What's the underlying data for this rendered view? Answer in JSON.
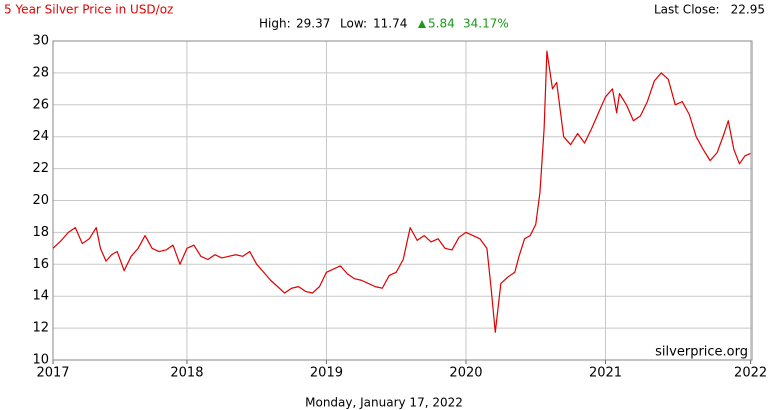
{
  "chart_data": {
    "type": "line",
    "title": "5 Year Silver Price in USD/oz",
    "last_close": {
      "label": "Last Close:",
      "value": 22.95
    },
    "high": {
      "label": "High:",
      "value": 29.37
    },
    "low": {
      "label": "Low:",
      "value": 11.74
    },
    "change": 5.84,
    "change_percent": "34.17%",
    "source": "silverprice.org",
    "date": "Monday, January 17, 2022",
    "xlim": [
      2017.04,
      2022.05
    ],
    "xticks": [
      {
        "value": 2017.04,
        "label": "2017"
      },
      2018,
      2019,
      2020,
      2021,
      {
        "value": 2022.04,
        "label": "2022"
      }
    ],
    "ylim": [
      10,
      30
    ],
    "yticks": [
      10,
      12,
      14,
      16,
      18,
      20,
      22,
      24,
      26,
      28,
      30
    ],
    "grid": true,
    "series": [
      {
        "name": "Silver",
        "color": "#e00000",
        "x": [
          2017.04,
          2017.1,
          2017.15,
          2017.2,
          2017.25,
          2017.3,
          2017.35,
          2017.38,
          2017.42,
          2017.46,
          2017.5,
          2017.55,
          2017.6,
          2017.65,
          2017.7,
          2017.75,
          2017.8,
          2017.85,
          2017.9,
          2017.95,
          2018.0,
          2018.05,
          2018.1,
          2018.15,
          2018.2,
          2018.25,
          2018.3,
          2018.35,
          2018.4,
          2018.45,
          2018.5,
          2018.55,
          2018.6,
          2018.65,
          2018.7,
          2018.75,
          2018.8,
          2018.85,
          2018.9,
          2018.95,
          2019.0,
          2019.05,
          2019.1,
          2019.15,
          2019.2,
          2019.25,
          2019.3,
          2019.35,
          2019.4,
          2019.45,
          2019.5,
          2019.55,
          2019.6,
          2019.65,
          2019.7,
          2019.75,
          2019.8,
          2019.85,
          2019.9,
          2019.95,
          2020.0,
          2020.05,
          2020.1,
          2020.15,
          2020.18,
          2020.21,
          2020.25,
          2020.3,
          2020.35,
          2020.38,
          2020.42,
          2020.46,
          2020.5,
          2020.53,
          2020.56,
          2020.58,
          2020.62,
          2020.65,
          2020.7,
          2020.75,
          2020.8,
          2020.85,
          2020.9,
          2020.95,
          2021.0,
          2021.05,
          2021.08,
          2021.1,
          2021.15,
          2021.2,
          2021.25,
          2021.3,
          2021.35,
          2021.4,
          2021.45,
          2021.5,
          2021.55,
          2021.6,
          2021.65,
          2021.7,
          2021.75,
          2021.8,
          2021.85,
          2021.88,
          2021.92,
          2021.96,
          2022.0,
          2022.04
        ],
        "values": [
          17.0,
          17.5,
          18.0,
          18.3,
          17.3,
          17.6,
          18.3,
          17.0,
          16.2,
          16.6,
          16.8,
          15.6,
          16.5,
          17.0,
          17.8,
          17.0,
          16.8,
          16.9,
          17.2,
          16.0,
          17.0,
          17.2,
          16.5,
          16.3,
          16.6,
          16.4,
          16.5,
          16.6,
          16.5,
          16.8,
          16.0,
          15.5,
          15.0,
          14.6,
          14.2,
          14.5,
          14.6,
          14.3,
          14.2,
          14.6,
          15.5,
          15.7,
          15.9,
          15.4,
          15.1,
          15.0,
          14.8,
          14.6,
          14.5,
          15.3,
          15.5,
          16.3,
          18.3,
          17.5,
          17.8,
          17.4,
          17.6,
          17.0,
          16.9,
          17.7,
          18.0,
          17.8,
          17.6,
          17.0,
          14.5,
          11.74,
          14.8,
          15.2,
          15.5,
          16.5,
          17.6,
          17.8,
          18.5,
          20.5,
          24.5,
          29.37,
          27.0,
          27.4,
          24.0,
          23.5,
          24.2,
          23.6,
          24.5,
          25.5,
          26.5,
          27.0,
          25.5,
          26.7,
          26.0,
          25.0,
          25.3,
          26.2,
          27.5,
          28.0,
          27.6,
          26.0,
          26.2,
          25.4,
          24.0,
          23.2,
          22.5,
          23.0,
          24.2,
          25.0,
          23.2,
          22.3,
          22.8,
          22.95
        ]
      }
    ]
  }
}
